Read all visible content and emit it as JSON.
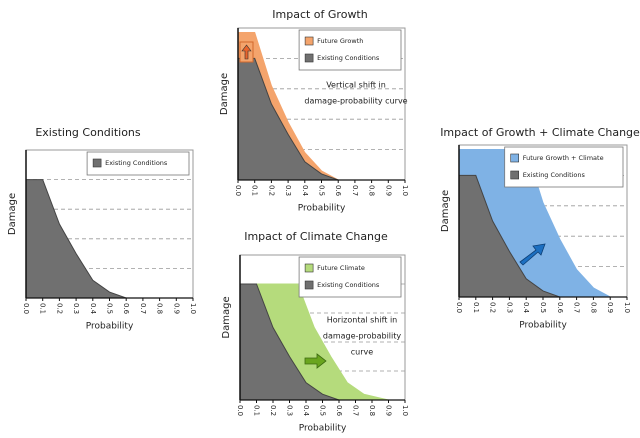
{
  "chart_data": [
    {
      "type": "area",
      "title": "Existing Conditions",
      "title_color": "#222222",
      "xlabel": "Probability",
      "ylabel": "Damage",
      "xlim": [
        0,
        1
      ],
      "ylim": [
        0,
        100
      ],
      "xticks": [
        {
          "value": 0,
          "label": "0.0"
        },
        0.1,
        0.2,
        0.3,
        0.4,
        0.5,
        0.6,
        0.7,
        0.8,
        0.9,
        {
          "value": 1,
          "label": "1.0"
        }
      ],
      "legend": "upper right",
      "series": [
        {
          "name": "Existing Conditions",
          "color": "#707070",
          "x": [
            0,
            0.1,
            0.2,
            0.3,
            0.4,
            0.5,
            0.6
          ],
          "values": [
            80,
            80,
            50,
            30,
            12,
            4,
            0
          ]
        }
      ]
    },
    {
      "type": "area",
      "title": "Impact of Growth",
      "title_color": "#e8642c",
      "xlabel": "Probability",
      "ylabel": "Damage",
      "xlim": [
        0,
        1
      ],
      "ylim": [
        0,
        100
      ],
      "xticks": [
        {
          "value": 0,
          "label": "0.0"
        },
        0.1,
        0.2,
        0.3,
        0.4,
        0.5,
        0.6,
        0.7,
        0.8,
        0.9,
        {
          "value": 1,
          "label": "1.0"
        }
      ],
      "legend": "upper right",
      "annotation": [
        "Vertical shift in",
        "damage-probability curve"
      ],
      "series": [
        {
          "name": "Future Growth",
          "color": "#f4a46c",
          "x": [
            0,
            0.1,
            0.2,
            0.3,
            0.4,
            0.5,
            0.6
          ],
          "values": [
            97,
            97,
            62,
            38,
            18,
            6,
            0
          ]
        },
        {
          "name": "Existing Conditions",
          "color": "#707070",
          "x": [
            0,
            0.1,
            0.2,
            0.3,
            0.4,
            0.5,
            0.6
          ],
          "values": [
            80,
            80,
            50,
            30,
            12,
            4,
            0
          ]
        }
      ]
    },
    {
      "type": "area",
      "title": "Impact of Climate Change",
      "title_color": "#6aa51e",
      "xlabel": "Probability",
      "ylabel": "Damage",
      "xlim": [
        0,
        1
      ],
      "ylim": [
        0,
        100
      ],
      "xticks": [
        {
          "value": 0,
          "label": "0.0"
        },
        0.1,
        0.2,
        0.3,
        0.4,
        0.5,
        0.6,
        0.7,
        0.8,
        0.9,
        {
          "value": 1,
          "label": "1.0"
        }
      ],
      "legend": "upper right",
      "annotation": [
        "Horizontal shift in",
        "damage-probability",
        "curve"
      ],
      "series": [
        {
          "name": "Future Climate",
          "color": "#b5db7c",
          "x": [
            0,
            0.35,
            0.45,
            0.55,
            0.65,
            0.75,
            0.9
          ],
          "values": [
            80,
            80,
            50,
            30,
            12,
            4,
            0
          ]
        },
        {
          "name": "Existing Conditions",
          "color": "#707070",
          "x": [
            0,
            0.1,
            0.2,
            0.3,
            0.4,
            0.5,
            0.6
          ],
          "values": [
            80,
            80,
            50,
            30,
            12,
            4,
            0
          ]
        }
      ]
    },
    {
      "type": "area",
      "title": "Impact of Growth + Climate Change",
      "title_color": "#1c6fc1",
      "xlabel": "Probability",
      "ylabel": "Damage",
      "xlim": [
        0,
        1
      ],
      "ylim": [
        0,
        100
      ],
      "xticks": [
        {
          "value": 0,
          "label": "0.0"
        },
        0.1,
        0.2,
        0.3,
        0.4,
        0.5,
        0.6,
        0.7,
        0.8,
        0.9,
        {
          "value": 1,
          "label": "1.0"
        }
      ],
      "legend": "upper right",
      "series": [
        {
          "name": "Future Growth + Climate",
          "color": "#7fb2e5",
          "x": [
            0,
            0.4,
            0.5,
            0.6,
            0.7,
            0.8,
            0.9
          ],
          "values": [
            97,
            97,
            62,
            38,
            18,
            6,
            0
          ]
        },
        {
          "name": "Existing Conditions",
          "color": "#707070",
          "x": [
            0,
            0.1,
            0.2,
            0.3,
            0.4,
            0.5,
            0.6
          ],
          "values": [
            80,
            80,
            50,
            30,
            12,
            4,
            0
          ]
        }
      ]
    }
  ]
}
